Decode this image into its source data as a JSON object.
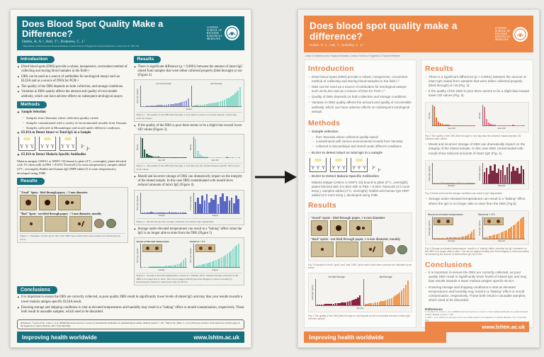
{
  "charts": {
    "legend_not_bled": "not bled through",
    "legend_bled": "bled through",
    "xlabel_sample": "Sample",
    "ylabel_intact": "Intact IgG (ng/ml)",
    "ylabel_total": "Total IgG (ng/ml)",
    "ylabel_density": "Density",
    "xlabel_msp": "msp OD",
    "xlabel_ama": "ama OD",
    "l_fig2a": {
      "color": "#98a0d6",
      "values": [
        3,
        3,
        4,
        4,
        5,
        5,
        6,
        7,
        7,
        8,
        9,
        10,
        11,
        12,
        13,
        15,
        17,
        19,
        22,
        26,
        31,
        38
      ]
    },
    "l_fig2b": {
      "color": "#8fdccc",
      "values": [
        6,
        7,
        8,
        9,
        10,
        11,
        12,
        14,
        16,
        18,
        20,
        23,
        26,
        29,
        33,
        38,
        43,
        50,
        57,
        66,
        78,
        95
      ]
    },
    "l_fig3a": {
      "color": "#2f6052",
      "values": [
        96,
        40,
        20,
        12,
        8,
        6,
        5,
        4,
        3,
        3,
        2,
        2,
        3,
        2,
        2,
        1,
        1,
        2,
        1,
        1
      ]
    },
    "l_fig3b": {
      "color": "#a9dcd6",
      "values": [
        92,
        34,
        15,
        8,
        5,
        4,
        3,
        2,
        2,
        3,
        1,
        2,
        1,
        1,
        4,
        1,
        1,
        1,
        2,
        1
      ]
    },
    "l_fig4a": {
      "color": "#6b79c8",
      "values": [
        4,
        2,
        3,
        1,
        5,
        2,
        1,
        4,
        2,
        3,
        1,
        2,
        5,
        1,
        3,
        2,
        4,
        1,
        2,
        3
      ]
    },
    "l_fig4b": {
      "color": "#5a68c4",
      "values": [
        55,
        75,
        45,
        85,
        60,
        92,
        50,
        70,
        66,
        88,
        42,
        78,
        95,
        58,
        82,
        62,
        74,
        48,
        86,
        68
      ]
    },
    "l_fig5a": {
      "color": "#8fdccc",
      "values": [
        2,
        2,
        2,
        2,
        3,
        3,
        3,
        3,
        4,
        4,
        4,
        5,
        5,
        6,
        6,
        7,
        8,
        9,
        11,
        13,
        17,
        22,
        30,
        42
      ]
    },
    "l_fig5b": {
      "color": "#8fdccc",
      "values": [
        5,
        7,
        9,
        11,
        13,
        15,
        17,
        19,
        22,
        25,
        28,
        31,
        35,
        39,
        43,
        48,
        53,
        59,
        65,
        72,
        80,
        88,
        95,
        100
      ]
    },
    "r_fig2a": {
      "color": "#8e2140",
      "values": [
        3,
        3,
        4,
        4,
        5,
        5,
        6,
        7,
        7,
        8,
        9,
        10,
        11,
        12,
        13,
        15,
        17,
        19,
        22,
        26,
        31,
        38
      ]
    },
    "r_fig2b": {
      "color": "#f09a52",
      "values": [
        6,
        7,
        8,
        9,
        10,
        11,
        12,
        14,
        16,
        18,
        20,
        23,
        26,
        29,
        33,
        38,
        43,
        50,
        57,
        66,
        78,
        95
      ]
    },
    "r_fig3a": {
      "color": "#e2703a",
      "values": [
        96,
        40,
        20,
        12,
        8,
        6,
        5,
        4,
        3,
        3,
        2,
        2,
        3,
        2,
        2,
        1,
        1,
        2,
        1,
        1
      ]
    },
    "r_fig3b": {
      "color": "#e87a90",
      "values": [
        92,
        34,
        15,
        8,
        5,
        4,
        3,
        2,
        2,
        3,
        1,
        2,
        1,
        1,
        4,
        1,
        1,
        1,
        2,
        1
      ]
    },
    "r_fig4a": {
      "color": "#d9b98a",
      "values": [
        4,
        2,
        3,
        1,
        5,
        2,
        1,
        4,
        2,
        3,
        1,
        2,
        5,
        1,
        3,
        2,
        4,
        1,
        2,
        3
      ]
    },
    "r_fig4b": {
      "color": "#7d2a45",
      "values": [
        55,
        75,
        45,
        85,
        60,
        92,
        50,
        70,
        66,
        88,
        42,
        78,
        95,
        58,
        82,
        62,
        74,
        48,
        86,
        68
      ]
    },
    "r_fig5a": {
      "color": "#f09a52",
      "values": [
        2,
        2,
        2,
        2,
        3,
        3,
        3,
        3,
        4,
        4,
        4,
        5,
        5,
        6,
        6,
        7,
        8,
        9,
        11,
        13,
        17,
        22,
        30,
        42
      ]
    },
    "r_fig5b": {
      "color": "#f09a52",
      "values": [
        5,
        7,
        9,
        11,
        13,
        15,
        17,
        19,
        22,
        25,
        28,
        31,
        35,
        39,
        43,
        48,
        53,
        59,
        65,
        72,
        80,
        88,
        95,
        100
      ]
    }
  },
  "left_poster": {
    "header": {
      "title": "Does Blood Spot Quality Make a Difference?",
      "authors": "Dabbs, R. A.¹, Hall, T.¹, Drakeley, C. J.¹",
      "affiliation": "¹ Department of Infectious and Tropical Diseases, London School of Hygiene & Tropical Medicine, London WC1E 7HT, UK",
      "logo_text": "LONDON\nSCHOOL of\nHYGIENE\n&TROPICAL\nMEDICINE"
    },
    "intro": {
      "heading": "Introduction",
      "bullets": [
        "Dried blood spots (DBS) provide a robust, inexpensive, convenient method of collecting and storing blood samples in the field¹,²",
        "DBS can be used as a source of antibodies for serological assays such as ELISA and as a source of DNA for PCR¹,²",
        "The quality of the DBS depends on both collection, and storage conditions.",
        "Variation in DBS quality affects the amount and quality of recoverable antibody, which can have adverse effects on subsequent serological assays."
      ]
    },
    "methods": {
      "heading": "Methods",
      "sample_title": "Sample Selection",
      "sample_bullets": [
        "Samples from Tanzania where collection quality varied.",
        "Samples contaminated with a variety of environmental moulds from Vanuatu.",
        "Samples collected in Mozambique and stored under different conditions."
      ],
      "elisa1_title": "ELISA to Detect Intact vs Total IgG in a Sample",
      "elisa2_title": "ELISA to Detect Malaria Specific Antibodies",
      "elisa2_text": "Malaria antigen (AMA1 or MSP1-19) bound to plate (4°C, overnight); plates blocked with 1% skim milk in PBS + 0.05% Tween20 (3 h room temperature); samples added (4°C, overnight); Rabbit anti-human IgG-HRP added (3 h room temperature); developed using TMB"
    },
    "results_left": {
      "heading": "Results",
      "good_label": "\"Good\" Spots - bled through paper, > 5 mm diameter",
      "bad_label": "\"Bad\" Spots - not bled through paper, < 5 mm diameter, mouldy",
      "fig1_caption": "Figure 1 – Examples of both \"good\" and \"bad\" DBS. Spots which have been scanned are indicated by an arrow."
    },
    "results_right": {
      "heading": "Results",
      "bullet1": "There is significant difference (p < 0.0001) between the amount of intact IgG eluted from samples that were either collected properly (bled through) or not (Figure 2)",
      "fig2_caption": "Figure 2 – The quality of the DBS (bled through or not) impacts on the recoverable amount of intact IgG from the sample.",
      "bullet2": "If the quality of the DBS is poor there seems to be a slight bias toward lower OD values (Figure 3).",
      "fig3_caption": "Figure 3 – The quality of the DBS (bled through or not) may bias the obtained malaria specific OD towards lower values.",
      "bullet3": "Mould and incorrect storage of DBS can dramatically impact on the integrity of the eluted sample. In this case DBS contaminated with mould show reduced amounts of intact IgG (Figure 4).",
      "fig4_caption": "Figure 4 – Mould and incorrect storage conditions can result in IgG degradation.",
      "bullet4": "Storage under elevated temperatures can result in a \"baking\" effect when the IgG is no longer able to elute from the DBS (Figure 5)",
      "fig5_title_a": "Stored at Elevated Temperature",
      "fig5_title_b": "Stored at + 4°C",
      "fig5_caption": "Figure 5 – Storage at elevated temperatures, results in a \"baking\" effect, whereby the IgG extracted on the DBS is no longer able to elute. This can be judged visually (see inset images) or more accurately by measuring the amount of eluted intact IgG by ELISA."
    },
    "conclusions": {
      "heading": "Conclusions",
      "bullets": [
        "It is important to ensure the DBS are correctly collected, as poor quality DBS result in significantly lower levels of eluted IgG and may bias your results towards a lower malaria antigen specific ELISA result.",
        "Ensuring storage and shipping conditions is vital as elevated temperatures and humidity may result in a \"baking\" effect or mould contamination, respectively. These both result in unusable samples, which need to be discarded."
      ]
    },
    "references": "References: ¹ Corran, P. H., Cook, J., et al. (2008) Dried blood spots as a source of anti-malarial antibodies for epidemiological studies. Malaria Journal 7, 195.  ² Hall, P. M., Mills, L., et al. (2012) An overview of the lateral use of filter paper in the diagnosis of tropical diseases. Am J Trop Med Hyg.",
    "footer": {
      "left": "Improving health worldwide",
      "right": "www.lshtm.ac.uk"
    }
  },
  "right_poster": {
    "header": {
      "title": "Does blood spot quality make a difference?",
      "authors": "Dabbs, R. A., Hall, T., Drakeley, C. J.¹",
      "logo_text": "LONDON\nSCHOOL of\nHYGIENE\n&TROPICAL\nMEDICINE"
    },
    "affiliation": "¹ Dept of Infectious and Tropical Diseases, London School of Hygiene & Tropical Medicine",
    "intro": {
      "heading": "Introduction",
      "bullets": [
        "Dried blood spots (DBS) provide a robust, inexpensive, convenient method of collecting and storing blood samples in the field.¹,²",
        "DBS can be used as a source of antibodies for serological assays such as ELISA and as a source of DNA for PCR.¹,²",
        "Quality of DBS depends on both collection and storage conditions.",
        "Variation in DBS quality affects the amount and quality of recoverable antibody, which can have adverse effects on subsequent serological assays."
      ]
    },
    "methods": {
      "heading": "Methods",
      "sample_title": "Sample selection",
      "sample_bullets": [
        "from Tanzania where collection quality varied;",
        "contaminated with various environmental moulds from Vanuatu;",
        "collected in Mozambique and stored under different conditions."
      ],
      "elisa1_title": "ELISA to detect intact vs total IgG in a sample",
      "elisa2_title": "ELISA to Detect Malaria Specific Antibodies",
      "elisa2_text": "Malaria antigen (AMA1 or MSP1-19) bound to plate (4°C, overnight); plates blocked with 1% skim milk in PBS + 0.05% Tween20 (3 h room temp.); samples added (4°C, overnight); Rabbit anti-human IgG-HRP added (3 h room temp.); developed using TMB"
    },
    "results_left": {
      "heading": "Results",
      "good_label": "\"Good\" spots - bled through paper, > 5 mm diameter",
      "bad_label": "\"Bad\" spots - not bled through paper, < 5 mm diameter, mouldy",
      "fig1_caption": "Fig. 1  Examples of both \"good\" and \"bad\" DBS. Spots which have been scanned are indicated by an arrow.",
      "fig2_caption": "Fig. 2  The quality of the DBS (bled through or not) impacts on the recoverable amount of intact IgG from the sample."
    },
    "results_right": {
      "heading": "Results",
      "bullet1": "There is a significant difference (p < 0.0001) between the amount of intact IgG eluted from samples that were either collected properly (bled through) or not (Fig. 2)",
      "bullet2": "If the quality of the DBS is poor there seems to be a slight bias toward lower OD values (Fig. 3).",
      "fig3_caption": "Fig. 3  The quality of the DBS (bled through or not) may bias the obtained malaria specific OD towards lower values.",
      "bullet3": "Mould and incorrect storage of DBS can dramatically impact on the integrity of the eluted sample. In this case DBS contaminated with mould show reduced amounts of intact IgG (Fig. 4)",
      "fig4_caption": "Fig. 4  Mould and incorrect storage conditions can result in IgG degradation.",
      "bullet4": "Storage under elevated temperatures can result in a \"baking\" effect where the IgG is no longer able to elute from the DBS (Fig.5).",
      "fig5_title_a": "Stored at elevated temperature",
      "fig5_title_b": "Stored at + 4°C",
      "fig5_caption": "Fig. 5  Storage at elevated temperatures, results in a \"baking\" effect, whereby the IgG contained on the DBS is no longer able to elute. This can be judged visually (see inset images) or more accurately by measuring the amount of eluted intact IgG by ELISA."
    },
    "conclusions": {
      "heading": "Conclusions",
      "bullets": [
        "It is important to ensure the DBS are correctly collected, as poor quality DBS result in significantly lower levels of eluted IgG and may bias results towards a lower malaria antigen specific ELISA.",
        "Ensuring storage and shipping conditions is vital as elevated temperatures and humidity may result in a \"baking\" effect or mould contamination, respectively. These both result in unusable samples, which need to be discarded."
      ]
    },
    "references": {
      "title": "References",
      "items": [
        "1. Corran P. H., Cook J., et al. (2008) Dried blood spots as a source of anti-malarial antibodies for epidemiological studies. Malaria Journal 7, 195.",
        "2. Hall T., et al. (2012) An overview of the use of filter paper in the diagnosis of tropical diseases. Am J Trop Med Hyg."
      ]
    },
    "footer": {
      "left": "Improving health worldwide",
      "right": "www.lshtm.ac.uk"
    }
  }
}
